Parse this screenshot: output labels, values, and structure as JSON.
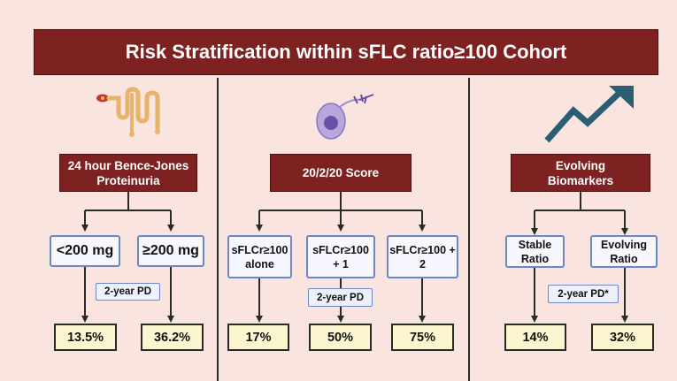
{
  "title": "Risk Stratification within sFLC ratio≥100 Cohort",
  "colors": {
    "header_red": "#7e2121",
    "category_blue": "#6d86c8",
    "result_yellow": "#fbf6cf",
    "background": "#f9e4df",
    "arrow_teal": "#2b5e73"
  },
  "panels": [
    {
      "header": "24 hour Bence-Jones Proteinuria",
      "icon": "kidney-icon",
      "pd_label": "2-year PD",
      "categories": [
        {
          "label": "<200 mg",
          "result": "13.5%"
        },
        {
          "label": "≥200 mg",
          "result": "36.2%"
        }
      ]
    },
    {
      "header": "20/2/20 Score",
      "icon": "plasma-cell-icon",
      "pd_label": "2-year PD",
      "categories": [
        {
          "label": "sFLCr≥100 alone",
          "result": "17%"
        },
        {
          "label": "sFLCr≥100 + 1",
          "result": "50%"
        },
        {
          "label": "sFLCr≥100 + 2",
          "result": "75%"
        }
      ]
    },
    {
      "header": "Evolving Biomarkers",
      "icon": "trend-up-arrow-icon",
      "pd_label": "2-year PD*",
      "categories": [
        {
          "label": "Stable Ratio",
          "result": "14%"
        },
        {
          "label": "Evolving Ratio",
          "result": "32%"
        }
      ]
    }
  ]
}
